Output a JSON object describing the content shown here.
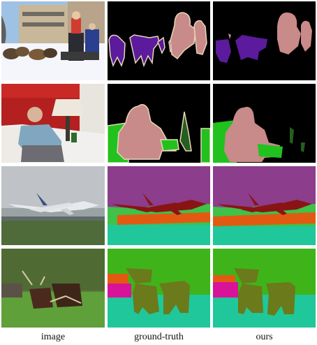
{
  "columns": {
    "image": "image",
    "ground_truth": "ground-truth",
    "ours": "ours"
  },
  "rows": [
    {
      "scene": "dog-sled"
    },
    {
      "scene": "old-man-living-room"
    },
    {
      "scene": "airplane-takeoff"
    },
    {
      "scene": "cattle-field"
    }
  ],
  "colors": {
    "background": "#000000",
    "person": "#c98a8a",
    "dog": "#5b1b9c",
    "boundary": "#e8d6b8",
    "sofa": "#21c21d",
    "plant": "#245f1f",
    "sky": "#8c3d8c",
    "airplane": "#8a1414",
    "grass": "#3fc14a",
    "runway": "#e25a12",
    "ground": "#1fc79a",
    "cow": "#6b7a1a",
    "tree": "#3fb41a",
    "building": "#d9129a"
  }
}
